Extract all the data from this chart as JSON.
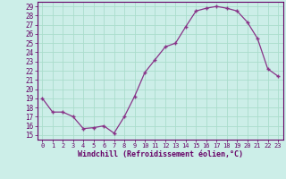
{
  "x": [
    0,
    1,
    2,
    3,
    4,
    5,
    6,
    7,
    8,
    9,
    10,
    11,
    12,
    13,
    14,
    15,
    16,
    17,
    18,
    19,
    20,
    21,
    22,
    23
  ],
  "y": [
    19.0,
    17.5,
    17.5,
    17.0,
    15.7,
    15.8,
    16.0,
    15.2,
    17.0,
    19.2,
    21.8,
    23.2,
    24.6,
    25.0,
    26.8,
    28.5,
    28.8,
    29.0,
    28.8,
    28.5,
    27.3,
    25.5,
    22.2,
    21.4
  ],
  "line_color": "#883388",
  "marker": "+",
  "marker_size": 3,
  "bg_color": "#cceee8",
  "grid_color": "#aaddcc",
  "xlabel": "Windchill (Refroidissement éolien,°C)",
  "ylabel_ticks": [
    15,
    16,
    17,
    18,
    19,
    20,
    21,
    22,
    23,
    24,
    25,
    26,
    27,
    28,
    29
  ],
  "ylim": [
    14.5,
    29.5
  ],
  "xlim": [
    -0.5,
    23.5
  ],
  "xtick_labels": [
    "0",
    "1",
    "2",
    "3",
    "4",
    "5",
    "6",
    "7",
    "8",
    "9",
    "10",
    "11",
    "12",
    "13",
    "14",
    "15",
    "16",
    "17",
    "18",
    "19",
    "20",
    "21",
    "22",
    "23"
  ],
  "axis_color": "#660066",
  "label_color": "#660066",
  "tick_color": "#660066",
  "xlabel_fontsize": 6.0,
  "ytick_fontsize": 5.5,
  "xtick_fontsize": 5.0
}
